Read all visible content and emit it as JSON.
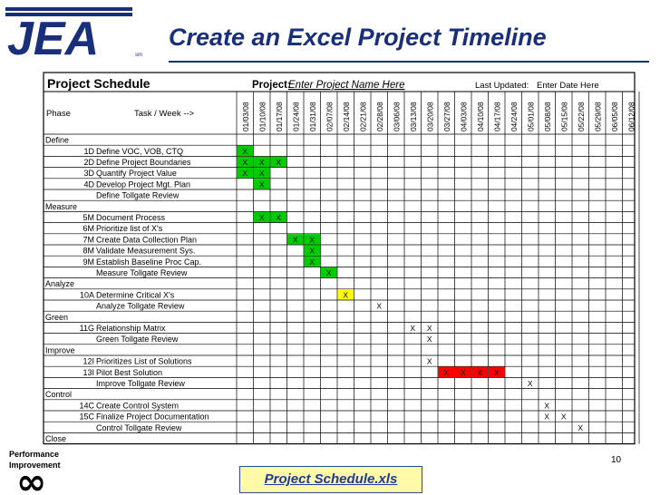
{
  "header": {
    "title": "Create an Excel Project Timeline",
    "logo_text": "JEA",
    "logo_tm": "sm"
  },
  "sheet": {
    "heading": "Project Schedule",
    "project_label": "Project:",
    "project_value": "Enter Project Name Here",
    "last_updated_label": "Last Updated:",
    "last_updated_value": "Enter Date Here",
    "phase_header": "Phase",
    "task_header": "Task / Week -->",
    "dates": [
      "01/03/08",
      "01/10/08",
      "01/17/08",
      "01/24/08",
      "01/31/08",
      "02/07/08",
      "02/14/08",
      "02/21/08",
      "02/28/08",
      "03/06/08",
      "03/13/08",
      "03/20/08",
      "03/27/08",
      "04/03/08",
      "04/10/08",
      "04/17/08",
      "04/24/08",
      "05/01/08",
      "05/08/08",
      "05/15/08",
      "05/22/08",
      "05/29/08",
      "06/05/08",
      "06/12/08"
    ],
    "rows": [
      {
        "phase": "Define",
        "id": "",
        "task": "",
        "marks": []
      },
      {
        "phase": "",
        "id": "1D",
        "task": "Define VOC, VOB, CTQ",
        "marks": [
          {
            "col": 0,
            "color": "green"
          }
        ]
      },
      {
        "phase": "",
        "id": "2D",
        "task": "Define Project Boundaries",
        "marks": [
          {
            "col": 0,
            "color": "green"
          },
          {
            "col": 1,
            "color": "green"
          },
          {
            "col": 2,
            "color": "green"
          }
        ]
      },
      {
        "phase": "",
        "id": "3D",
        "task": "Quantify Project Value",
        "marks": [
          {
            "col": 0,
            "color": "green"
          },
          {
            "col": 1,
            "color": "green"
          }
        ]
      },
      {
        "phase": "",
        "id": "4D",
        "task": "Develop Project Mgt. Plan",
        "marks": [
          {
            "col": 1,
            "color": "green"
          }
        ]
      },
      {
        "phase": "",
        "id": "",
        "task": "Define Tollgate Review",
        "marks": []
      },
      {
        "phase": "Measure",
        "id": "",
        "task": "",
        "marks": []
      },
      {
        "phase": "",
        "id": "5M",
        "task": "Document Process",
        "marks": [
          {
            "col": 1,
            "color": "green"
          },
          {
            "col": 2,
            "color": "green"
          }
        ]
      },
      {
        "phase": "",
        "id": "6M",
        "task": "Prioritize list of X's",
        "marks": []
      },
      {
        "phase": "",
        "id": "7M",
        "task": "Create Data Collection Plan",
        "marks": [
          {
            "col": 3,
            "color": "green"
          },
          {
            "col": 4,
            "color": "green"
          }
        ]
      },
      {
        "phase": "",
        "id": "8M",
        "task": "Validate Measurement Sys.",
        "marks": [
          {
            "col": 4,
            "color": "green"
          }
        ]
      },
      {
        "phase": "",
        "id": "9M",
        "task": "Establish Baseline Proc Cap.",
        "marks": [
          {
            "col": 4,
            "color": "green"
          }
        ]
      },
      {
        "phase": "",
        "id": "",
        "task": "Measure Tollgate Review",
        "marks": [
          {
            "col": 5,
            "color": "green"
          }
        ]
      },
      {
        "phase": "Analyze",
        "id": "",
        "task": "",
        "marks": []
      },
      {
        "phase": "",
        "id": "10A",
        "task": "Determine Critical X's",
        "marks": [
          {
            "col": 6,
            "color": "yellow"
          }
        ]
      },
      {
        "phase": "",
        "id": "",
        "task": "Analyze Tollgate Review",
        "marks": [
          {
            "col": 8,
            "color": "none"
          }
        ]
      },
      {
        "phase": "Green",
        "id": "",
        "task": "",
        "marks": []
      },
      {
        "phase": "",
        "id": "11G",
        "task": "Relationship Matrix",
        "marks": [
          {
            "col": 10,
            "color": "none"
          },
          {
            "col": 11,
            "color": "none"
          }
        ]
      },
      {
        "phase": "",
        "id": "",
        "task": "Green Tollgate Review",
        "marks": [
          {
            "col": 11,
            "color": "none"
          }
        ]
      },
      {
        "phase": "Improve",
        "id": "",
        "task": "",
        "marks": []
      },
      {
        "phase": "",
        "id": "12I",
        "task": "Prioritizes List of Solutions",
        "marks": [
          {
            "col": 11,
            "color": "none"
          }
        ]
      },
      {
        "phase": "",
        "id": "13I",
        "task": "Pilot Best Solution",
        "marks": [
          {
            "col": 12,
            "color": "red"
          },
          {
            "col": 13,
            "color": "red"
          },
          {
            "col": 14,
            "color": "red"
          },
          {
            "col": 15,
            "color": "red"
          }
        ]
      },
      {
        "phase": "",
        "id": "",
        "task": "Improve Tollgate Review",
        "marks": [
          {
            "col": 17,
            "color": "none"
          }
        ]
      },
      {
        "phase": "Control",
        "id": "",
        "task": "",
        "marks": []
      },
      {
        "phase": "",
        "id": "14C",
        "task": "Create Control System",
        "marks": [
          {
            "col": 18,
            "color": "none"
          }
        ]
      },
      {
        "phase": "",
        "id": "15C",
        "task": "Finalize Project Documentation",
        "marks": [
          {
            "col": 18,
            "color": "none"
          },
          {
            "col": 19,
            "color": "none"
          }
        ]
      },
      {
        "phase": "",
        "id": "",
        "task": "Control Tollgate Review",
        "marks": [
          {
            "col": 20,
            "color": "none"
          }
        ]
      },
      {
        "phase": "Close",
        "id": "",
        "task": "",
        "marks": []
      }
    ],
    "mark_text": "X",
    "colors": {
      "green": "#00cc00",
      "yellow": "#ffff00",
      "red": "#ff0000",
      "border": "#000000"
    }
  },
  "footer": {
    "perf_line1": "Performance",
    "perf_line2": "Improvement",
    "perf_symbol": "∞",
    "page_number": "10",
    "link_text": "Project Schedule.xls"
  }
}
